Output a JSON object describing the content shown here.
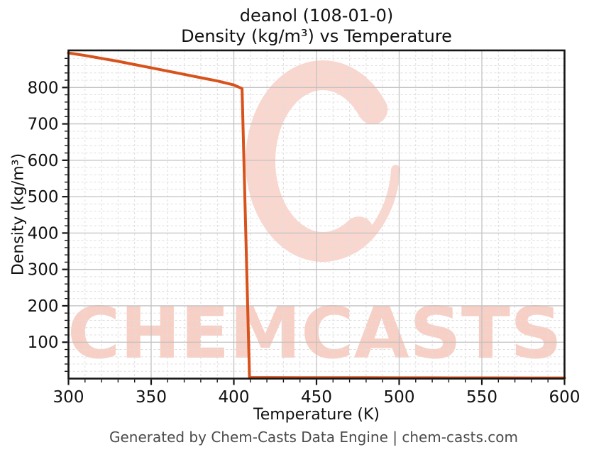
{
  "title_line1": "deanol (108-01-0)",
  "title_line2": "Density (kg/m³) vs Temperature",
  "xlabel": "Temperature (K)",
  "ylabel": "Density (kg/m³)",
  "footer": "Generated by Chem-Casts Data Engine | chem-casts.com",
  "watermark_text": "CHEMCASTS",
  "colors": {
    "line": "#d8521c",
    "watermark_ring": "#f9d7cf",
    "watermark_text": "#f8cfc4",
    "grid_major": "#c2c2c2",
    "grid_minor": "#dedede",
    "axis": "#161616",
    "tick_label": "#111111",
    "footer_text": "#4a4a4a"
  },
  "chart_data": {
    "type": "line",
    "title": "deanol (108-01-0)",
    "subtitle": "Density (kg/m³) vs Temperature",
    "xlabel": "Temperature (K)",
    "ylabel": "Density (kg/m³)",
    "xlim": [
      300,
      600
    ],
    "ylim": [
      0,
      902
    ],
    "xticks": [
      300,
      350,
      400,
      450,
      500,
      550,
      600
    ],
    "yticks": [
      100,
      200,
      300,
      400,
      500,
      600,
      700,
      800
    ],
    "minor_x_step": 10,
    "minor_y_step": 20,
    "grid": true,
    "legend": false,
    "series": [
      {
        "name": "density",
        "points": [
          [
            300,
            895
          ],
          [
            310,
            888
          ],
          [
            320,
            880
          ],
          [
            330,
            872
          ],
          [
            340,
            863
          ],
          [
            350,
            854
          ],
          [
            360,
            845
          ],
          [
            370,
            836
          ],
          [
            380,
            827
          ],
          [
            390,
            818
          ],
          [
            400,
            807
          ],
          [
            405,
            797
          ],
          [
            409.5,
            3
          ],
          [
            420,
            2.8
          ],
          [
            440,
            2.6
          ],
          [
            460,
            2.4
          ],
          [
            480,
            2.3
          ],
          [
            500,
            2.2
          ],
          [
            520,
            2.1
          ],
          [
            540,
            2.0
          ],
          [
            560,
            1.9
          ],
          [
            580,
            1.85
          ],
          [
            600,
            1.8
          ]
        ]
      }
    ]
  }
}
